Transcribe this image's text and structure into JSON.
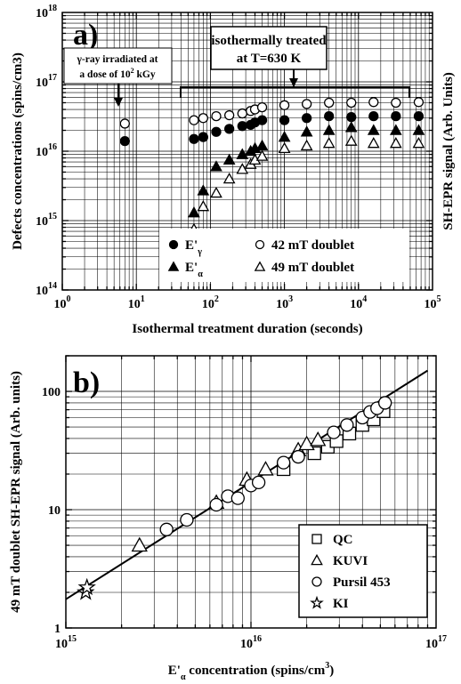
{
  "chart_data": [
    {
      "panel": "a)",
      "type": "scatter",
      "x_scale": "log",
      "y_scale": "log",
      "xlim": [
        1,
        100000
      ],
      "ylim": [
        100000000000000.0,
        1e+18
      ],
      "xlabel": "Isothermal treatment duration (seconds)",
      "ylabel": "Defects concentrations (spins/cm3)",
      "ylabel_sup": "3",
      "ylabel_right": "SH-EPR signal (Arb. Units)",
      "x_ticks": [
        {
          "v": 1,
          "base": "10",
          "exp": "0"
        },
        {
          "v": 10,
          "base": "10",
          "exp": "1"
        },
        {
          "v": 100,
          "base": "10",
          "exp": "2"
        },
        {
          "v": 1000,
          "base": "10",
          "exp": "3"
        },
        {
          "v": 10000,
          "base": "10",
          "exp": "4"
        },
        {
          "v": 100000,
          "base": "10",
          "exp": "5"
        }
      ],
      "y_ticks": [
        {
          "v": 100000000000000.0,
          "base": "10",
          "exp": "14"
        },
        {
          "v": 1000000000000000.0,
          "base": "10",
          "exp": "15"
        },
        {
          "v": 1e+16,
          "base": "10",
          "exp": "16"
        },
        {
          "v": 1e+17,
          "base": "10",
          "exp": "17"
        },
        {
          "v": 1e+18,
          "base": "10",
          "exp": "18"
        }
      ],
      "annotations": {
        "box1_line1": "isothermally treated",
        "box1_line2": "at T=630 K",
        "box2_line1": "γ-ray irradiated at",
        "box2_line2": "a dose of 10",
        "box2_sup": "2",
        "box2_tail": " kGy"
      },
      "series": [
        {
          "name": "E'γ",
          "marker": "filled-circle",
          "x": [
            7,
            60,
            80,
            120,
            180,
            270,
            350,
            400,
            500,
            1000,
            2000,
            4000,
            8000,
            16000,
            32000,
            65000
          ],
          "y": [
            1.4e+16,
            1.5e+16,
            1.6e+16,
            1.9e+16,
            2.1e+16,
            2.3e+16,
            2.4e+16,
            2.6e+16,
            2.8e+16,
            2.8e+16,
            3e+16,
            3.2e+16,
            3.1e+16,
            3.2e+16,
            3.2e+16,
            3.2e+16
          ]
        },
        {
          "name": "42 mT doublet",
          "marker": "open-circle",
          "x": [
            7,
            60,
            80,
            120,
            180,
            270,
            350,
            400,
            500,
            1000,
            2000,
            4000,
            8000,
            16000,
            32000,
            65000
          ],
          "y": [
            2.5e+16,
            2.8e+16,
            3e+16,
            3.2e+16,
            3.3e+16,
            3.5e+16,
            3.8e+16,
            4e+16,
            4.3e+16,
            4.6e+16,
            4.8e+16,
            5e+16,
            5e+16,
            5.1e+16,
            5e+16,
            5.1e+16
          ]
        },
        {
          "name": "E'α",
          "marker": "filled-triangle",
          "x": [
            60,
            80,
            120,
            180,
            270,
            350,
            400,
            500,
            1000,
            2000,
            4000,
            8000,
            16000,
            32000,
            65000
          ],
          "y": [
            1300000000000000.0,
            2700000000000000.0,
            6000000000000000.0,
            7500000000000000.0,
            9000000000000000.0,
            1e+16,
            1.1e+16,
            1.2e+16,
            1.6e+16,
            1.9e+16,
            2e+16,
            2.2e+16,
            2e+16,
            2e+16,
            2e+16
          ]
        },
        {
          "name": "49 mT doublet",
          "marker": "open-triangle",
          "x": [
            60,
            80,
            120,
            180,
            270,
            350,
            400,
            500,
            1000,
            2000,
            4000,
            8000,
            16000,
            32000,
            65000
          ],
          "y": [
            750000000000000.0,
            1600000000000000.0,
            2500000000000000.0,
            4000000000000000.0,
            5500000000000000.0,
            6500000000000000.0,
            7500000000000000.0,
            8500000000000000.0,
            1.1e+16,
            1.2e+16,
            1.3e+16,
            1.4e+16,
            1.3e+16,
            1.3e+16,
            1.3e+16
          ]
        }
      ],
      "legend": {
        "placement": "bottom-right",
        "entries": [
          {
            "marker": "filled-circle",
            "label": "E'",
            "sub": "γ"
          },
          {
            "marker": "open-circle",
            "label": "42 mT doublet",
            "sub": ""
          },
          {
            "marker": "filled-triangle",
            "label": "E'",
            "sub": "α"
          },
          {
            "marker": "open-triangle",
            "label": "49 mT doublet",
            "sub": ""
          }
        ]
      },
      "grid": true
    },
    {
      "panel": "b)",
      "type": "scatter",
      "x_scale": "log",
      "y_scale": "log",
      "xlim": [
        1000000000000000.0,
        1e+17
      ],
      "ylim": [
        1,
        200
      ],
      "xlabel_main": "E'",
      "xlabel_sub": "α",
      "xlabel_tail": " concentration (spins/cm",
      "xlabel_sup": "3",
      "xlabel_end": ")",
      "ylabel": "49 mT doublet SH-EPR signal (Arb. units)",
      "x_ticks": [
        {
          "v": 1000000000000000.0,
          "base": "10",
          "exp": "15"
        },
        {
          "v": 1e+16,
          "base": "10",
          "exp": "16"
        },
        {
          "v": 1e+17,
          "base": "10",
          "exp": "17"
        }
      ],
      "y_ticks": [
        {
          "v": 1,
          "label": "1"
        },
        {
          "v": 10,
          "label": "10"
        },
        {
          "v": 100,
          "label": "100"
        }
      ],
      "fit_line": {
        "x": [
          1000000000000000.0,
          9e+16
        ],
        "y": [
          1.75,
          150
        ]
      },
      "series": [
        {
          "name": "QC",
          "marker": "open-square",
          "x": [
            1.5e+16,
            2.2e+16,
            2.6e+16,
            2.9e+16,
            3.4e+16,
            4e+16,
            4.6e+16,
            5.2e+16
          ],
          "y": [
            22,
            30,
            34,
            38,
            44,
            52,
            58,
            68
          ]
        },
        {
          "name": "KUVI",
          "marker": "open-triangle",
          "x": [
            2500000000000000.0,
            6500000000000000.0,
            9500000000000000.0,
            1.2e+16,
            1.8e+16,
            2e+16,
            2.3e+16
          ],
          "y": [
            5.0,
            11.5,
            18,
            22,
            32,
            36,
            39
          ]
        },
        {
          "name": "Pursil 453",
          "marker": "open-circle",
          "x": [
            3500000000000000.0,
            4500000000000000.0,
            6500000000000000.0,
            7500000000000000.0,
            8500000000000000.0,
            1e+16,
            1.1e+16,
            1.5e+16,
            1.8e+16,
            2.8e+16,
            3.3e+16,
            4e+16,
            4.4e+16,
            4.8e+16,
            5.3e+16
          ],
          "y": [
            6.8,
            8.2,
            11,
            13,
            12.5,
            16,
            17,
            25,
            28,
            45,
            52,
            60,
            67,
            72,
            80
          ]
        },
        {
          "name": "KI",
          "marker": "open-star",
          "x": [
            1280000000000000.0,
            1300000000000000.0
          ],
          "y": [
            2.0,
            2.2
          ]
        }
      ],
      "legend": {
        "placement": "bottom-right",
        "entries": [
          {
            "marker": "open-square",
            "label": "QC"
          },
          {
            "marker": "open-triangle",
            "label": "KUVI"
          },
          {
            "marker": "open-circle",
            "label": "Pursil 453"
          },
          {
            "marker": "open-star",
            "label": "KI"
          }
        ]
      },
      "grid": true
    }
  ]
}
